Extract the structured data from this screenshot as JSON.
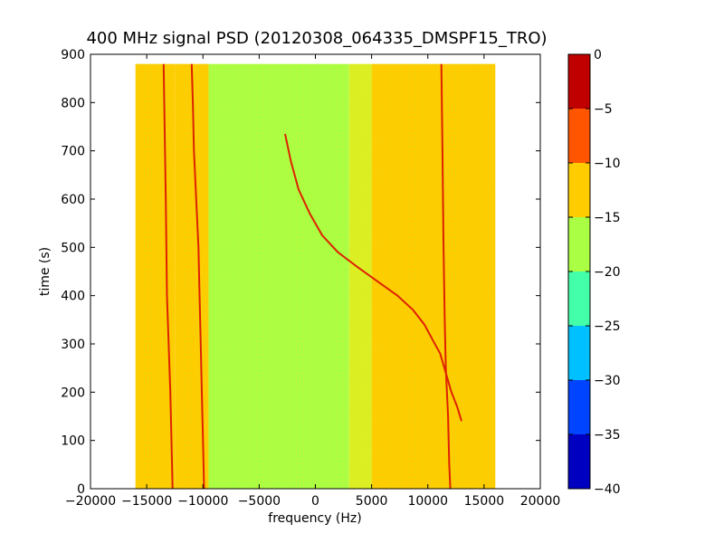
{
  "chart_data": {
    "type": "heatmap",
    "title": "400 MHz signal PSD (20120308_064335_DMSPF15_TRO)",
    "xlabel": "frequency (Hz)",
    "ylabel": "time (s)",
    "xlim": [
      -20000,
      20000
    ],
    "ylim": [
      0,
      900
    ],
    "xticks": [
      -20000,
      -15000,
      -10000,
      -5000,
      0,
      5000,
      10000,
      15000,
      20000
    ],
    "xtick_labels": [
      "−20000",
      "−15000",
      "−10000",
      "−5000",
      "0",
      "5000",
      "10000",
      "15000",
      "20000"
    ],
    "yticks": [
      0,
      100,
      200,
      300,
      400,
      500,
      600,
      700,
      800,
      900
    ],
    "ytick_labels": [
      "0",
      "100",
      "200",
      "300",
      "400",
      "500",
      "600",
      "700",
      "800",
      "900"
    ],
    "data_extent": {
      "freq": [
        -16000,
        16000
      ],
      "time": [
        0,
        880
      ]
    },
    "colorbar": {
      "levels": [
        -40,
        -35,
        -30,
        -25,
        -20,
        -15,
        -10,
        -5,
        0
      ],
      "tick_labels": [
        "−40",
        "−35",
        "−30",
        "−25",
        "−20",
        "−15",
        "−10",
        "−5",
        "0"
      ],
      "colors": [
        "#0000c0",
        "#0044ff",
        "#00c0ff",
        "#44ffaa",
        "#aaff44",
        "#ffcc00",
        "#ff5500",
        "#c00000"
      ]
    },
    "background_bands": [
      {
        "freq": [
          -16000,
          -12500
        ],
        "color": "#ffcc00",
        "level_range": [
          -15,
          -10
        ]
      },
      {
        "freq": [
          -12500,
          -9500
        ],
        "color": "#ffcc00",
        "level_range": [
          -15,
          -10
        ]
      },
      {
        "freq": [
          -9500,
          3000
        ],
        "color": "#aaff44",
        "level_range": [
          -20,
          -15
        ]
      },
      {
        "freq": [
          3000,
          5000
        ],
        "color": "#ddee22",
        "level_range": [
          -20,
          -10
        ]
      },
      {
        "freq": [
          5000,
          16000
        ],
        "color": "#ffcc00",
        "level_range": [
          -15,
          -10
        ]
      }
    ],
    "traces": [
      {
        "name": "",
        "color": "#dd2200",
        "points": [
          [
            -13500,
            880
          ],
          [
            -13300,
            600
          ],
          [
            -13200,
            400
          ],
          [
            -12900,
            200
          ],
          [
            -12700,
            0
          ]
        ]
      },
      {
        "name": "",
        "color": "#dd2200",
        "points": [
          [
            -11000,
            880
          ],
          [
            -10900,
            800
          ],
          [
            -10800,
            700
          ],
          [
            -10600,
            600
          ],
          [
            -10400,
            500
          ],
          [
            -10300,
            400
          ],
          [
            -10200,
            300
          ],
          [
            -10100,
            200
          ],
          [
            -10000,
            100
          ],
          [
            -9900,
            0
          ]
        ]
      },
      {
        "name": "",
        "color": "#dd2200",
        "points": [
          [
            -2700,
            735
          ],
          [
            -2200,
            680
          ],
          [
            -1500,
            620
          ],
          [
            -500,
            570
          ],
          [
            600,
            525
          ],
          [
            2000,
            490
          ],
          [
            3700,
            460
          ],
          [
            5500,
            430
          ],
          [
            7300,
            400
          ],
          [
            8700,
            370
          ],
          [
            9700,
            340
          ],
          [
            10500,
            305
          ],
          [
            11100,
            280
          ],
          [
            11600,
            240
          ],
          [
            12100,
            200
          ],
          [
            12600,
            170
          ],
          [
            13000,
            140
          ]
        ]
      },
      {
        "name": "",
        "color": "#dd2200",
        "points": [
          [
            11200,
            880
          ],
          [
            11300,
            700
          ],
          [
            11400,
            500
          ],
          [
            11500,
            350
          ],
          [
            11600,
            250
          ],
          [
            11800,
            150
          ],
          [
            11900,
            50
          ],
          [
            12000,
            0
          ]
        ]
      }
    ]
  }
}
